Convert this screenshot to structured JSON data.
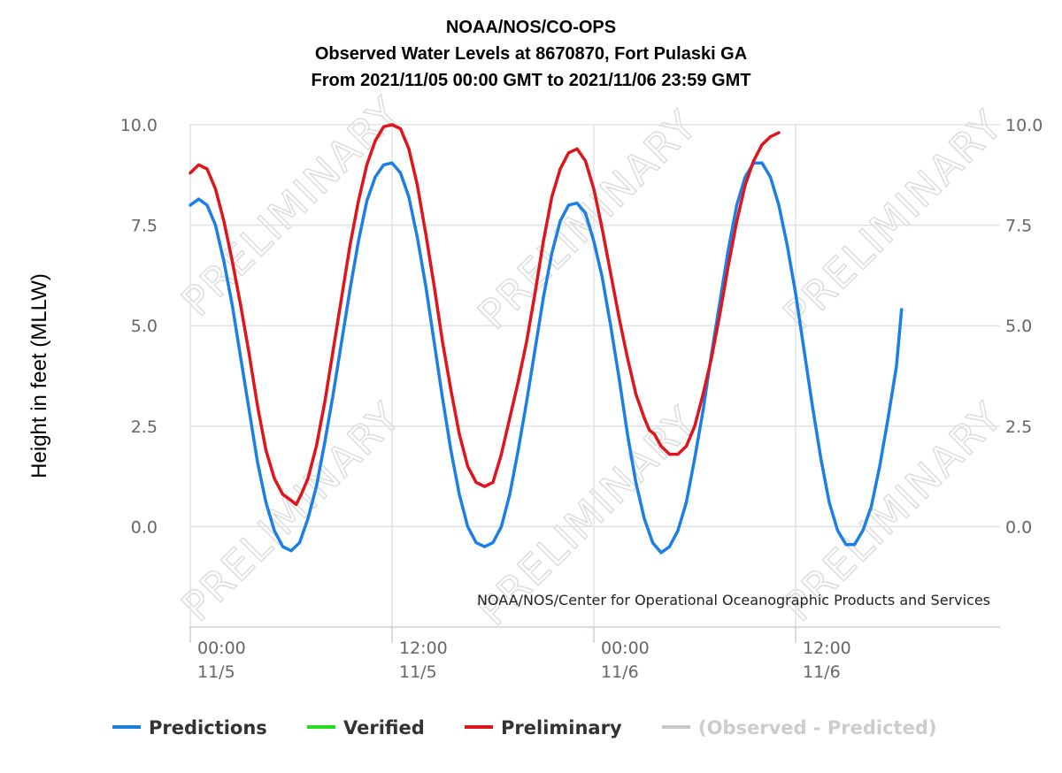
{
  "chart_data": {
    "type": "line",
    "title": [
      "NOAA/NOS/CO-OPS",
      "Observed Water Levels at 8670870, Fort Pulaski GA",
      "From 2021/11/05 00:00 GMT to 2021/11/06 23:59 GMT"
    ],
    "ylabel": "Height in feet (MLLW)",
    "xlabel": "",
    "x_unit": "hours since 2021/11/05 00:00 GMT",
    "xlim": [
      0,
      48
    ],
    "ylim": [
      -2.5,
      10
    ],
    "y_ticks": [
      10,
      7.5,
      5,
      2.5,
      0
    ],
    "y_tick_labels": [
      "10.0",
      "7.5",
      "5.0",
      "2.5",
      "0.0"
    ],
    "x_ticks": [
      {
        "x": 0,
        "time": "00:00",
        "date": "11/5"
      },
      {
        "x": 12,
        "time": "12:00",
        "date": "11/5"
      },
      {
        "x": 24,
        "time": "00:00",
        "date": "11/6"
      },
      {
        "x": 36,
        "time": "12:00",
        "date": "11/6"
      }
    ],
    "grid": true,
    "credit": "NOAA/NOS/Center for Operational Oceanographic Products and Services",
    "watermark": "PRELIMINARY",
    "legend_position": "bottom",
    "series": [
      {
        "name": "Predictions",
        "color": "#1c7fe6",
        "points": [
          [
            0,
            8.0
          ],
          [
            0.5,
            8.15
          ],
          [
            1,
            8.0
          ],
          [
            1.5,
            7.5
          ],
          [
            2,
            6.6
          ],
          [
            2.5,
            5.5
          ],
          [
            3,
            4.2
          ],
          [
            3.5,
            2.9
          ],
          [
            4,
            1.6
          ],
          [
            4.5,
            0.6
          ],
          [
            5,
            -0.1
          ],
          [
            5.5,
            -0.5
          ],
          [
            6,
            -0.6
          ],
          [
            6.5,
            -0.4
          ],
          [
            7,
            0.2
          ],
          [
            7.5,
            1.0
          ],
          [
            8,
            2.1
          ],
          [
            8.5,
            3.3
          ],
          [
            9,
            4.6
          ],
          [
            9.5,
            5.9
          ],
          [
            10,
            7.1
          ],
          [
            10.5,
            8.1
          ],
          [
            11,
            8.7
          ],
          [
            11.5,
            9.0
          ],
          [
            12,
            9.05
          ],
          [
            12.5,
            8.8
          ],
          [
            13,
            8.2
          ],
          [
            13.5,
            7.2
          ],
          [
            14,
            6.0
          ],
          [
            14.5,
            4.6
          ],
          [
            15,
            3.2
          ],
          [
            15.5,
            1.9
          ],
          [
            16,
            0.8
          ],
          [
            16.5,
            0.0
          ],
          [
            17,
            -0.4
          ],
          [
            17.5,
            -0.5
          ],
          [
            18,
            -0.4
          ],
          [
            18.5,
            0.0
          ],
          [
            19,
            0.8
          ],
          [
            19.5,
            1.9
          ],
          [
            20,
            3.1
          ],
          [
            20.5,
            4.4
          ],
          [
            21,
            5.7
          ],
          [
            21.5,
            6.8
          ],
          [
            22,
            7.6
          ],
          [
            22.5,
            8.0
          ],
          [
            23,
            8.05
          ],
          [
            23.5,
            7.8
          ],
          [
            24,
            7.1
          ],
          [
            24.5,
            6.2
          ],
          [
            25,
            5.0
          ],
          [
            25.5,
            3.7
          ],
          [
            26,
            2.3
          ],
          [
            26.5,
            1.1
          ],
          [
            27,
            0.2
          ],
          [
            27.5,
            -0.4
          ],
          [
            28,
            -0.65
          ],
          [
            28.5,
            -0.5
          ],
          [
            29,
            -0.1
          ],
          [
            29.5,
            0.6
          ],
          [
            30,
            1.7
          ],
          [
            30.5,
            2.9
          ],
          [
            31,
            4.3
          ],
          [
            31.5,
            5.6
          ],
          [
            32,
            6.9
          ],
          [
            32.5,
            8.0
          ],
          [
            33,
            8.7
          ],
          [
            33.5,
            9.05
          ],
          [
            34,
            9.05
          ],
          [
            34.5,
            8.7
          ],
          [
            35,
            8.0
          ],
          [
            35.5,
            7.0
          ],
          [
            36,
            5.8
          ],
          [
            36.5,
            4.4
          ],
          [
            37,
            3.0
          ],
          [
            37.5,
            1.7
          ],
          [
            38,
            0.6
          ],
          [
            38.5,
            -0.1
          ],
          [
            39,
            -0.45
          ],
          [
            39.5,
            -0.45
          ],
          [
            40,
            -0.1
          ],
          [
            40.5,
            0.5
          ],
          [
            41,
            1.5
          ],
          [
            41.5,
            2.7
          ],
          [
            42,
            4.0
          ],
          [
            42.3,
            5.4
          ]
        ]
      },
      {
        "name": "Verified",
        "color": "#22dd22",
        "points": []
      },
      {
        "name": "Preliminary",
        "color": "#e0151b",
        "points": [
          [
            0,
            8.8
          ],
          [
            0.5,
            9.0
          ],
          [
            1,
            8.9
          ],
          [
            1.5,
            8.4
          ],
          [
            2,
            7.6
          ],
          [
            2.5,
            6.6
          ],
          [
            3,
            5.5
          ],
          [
            3.5,
            4.3
          ],
          [
            4,
            3.0
          ],
          [
            4.5,
            1.9
          ],
          [
            5,
            1.2
          ],
          [
            5.5,
            0.8
          ],
          [
            6,
            0.65
          ],
          [
            6.3,
            0.55
          ],
          [
            6.6,
            0.8
          ],
          [
            7,
            1.2
          ],
          [
            7.5,
            2.0
          ],
          [
            8,
            3.1
          ],
          [
            8.5,
            4.4
          ],
          [
            9,
            5.7
          ],
          [
            9.5,
            7.0
          ],
          [
            10,
            8.1
          ],
          [
            10.5,
            9.0
          ],
          [
            11,
            9.6
          ],
          [
            11.5,
            9.95
          ],
          [
            12,
            10.0
          ],
          [
            12.5,
            9.9
          ],
          [
            13,
            9.4
          ],
          [
            13.5,
            8.5
          ],
          [
            14,
            7.3
          ],
          [
            14.5,
            6.0
          ],
          [
            15,
            4.6
          ],
          [
            15.5,
            3.4
          ],
          [
            16,
            2.3
          ],
          [
            16.5,
            1.5
          ],
          [
            17,
            1.1
          ],
          [
            17.5,
            1.0
          ],
          [
            18,
            1.1
          ],
          [
            18.5,
            1.8
          ],
          [
            19,
            2.7
          ],
          [
            19.5,
            3.6
          ],
          [
            20,
            4.6
          ],
          [
            20.5,
            5.8
          ],
          [
            21,
            7.1
          ],
          [
            21.5,
            8.2
          ],
          [
            22,
            8.9
          ],
          [
            22.5,
            9.3
          ],
          [
            23,
            9.4
          ],
          [
            23.5,
            9.1
          ],
          [
            24,
            8.4
          ],
          [
            24.5,
            7.4
          ],
          [
            25,
            6.3
          ],
          [
            25.5,
            5.2
          ],
          [
            26,
            4.2
          ],
          [
            26.5,
            3.3
          ],
          [
            27,
            2.7
          ],
          [
            27.3,
            2.4
          ],
          [
            27.6,
            2.3
          ],
          [
            28,
            2.0
          ],
          [
            28.5,
            1.8
          ],
          [
            29,
            1.8
          ],
          [
            29.5,
            2.0
          ],
          [
            30,
            2.5
          ],
          [
            30.5,
            3.3
          ],
          [
            31,
            4.2
          ],
          [
            31.5,
            5.3
          ],
          [
            32,
            6.5
          ],
          [
            32.5,
            7.6
          ],
          [
            33,
            8.5
          ],
          [
            33.5,
            9.1
          ],
          [
            34,
            9.5
          ],
          [
            34.5,
            9.7
          ],
          [
            35,
            9.8
          ]
        ]
      },
      {
        "name": "(Observed - Predicted)",
        "color": "#c8c8c8",
        "points": []
      }
    ]
  }
}
